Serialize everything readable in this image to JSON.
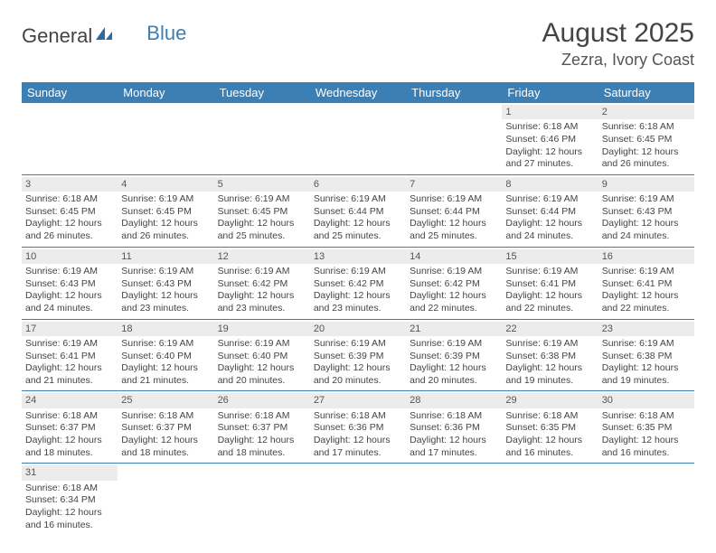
{
  "logo": {
    "text1": "General",
    "text2": "Blue"
  },
  "title": "August 2025",
  "location": "Zezra, Ivory Coast",
  "colors": {
    "header_bg": "#3b7fb5",
    "header_text": "#ffffff",
    "daynum_bg": "#ececec",
    "border": "#3b7fb5",
    "body_text": "#444444"
  },
  "typography": {
    "title_fontsize": 30,
    "location_fontsize": 18,
    "header_fontsize": 13,
    "cell_fontsize": 10.5
  },
  "weekdays": [
    "Sunday",
    "Monday",
    "Tuesday",
    "Wednesday",
    "Thursday",
    "Friday",
    "Saturday"
  ],
  "weeks": [
    [
      {
        "day": "",
        "sunrise": "",
        "sunset": "",
        "daylight": ""
      },
      {
        "day": "",
        "sunrise": "",
        "sunset": "",
        "daylight": ""
      },
      {
        "day": "",
        "sunrise": "",
        "sunset": "",
        "daylight": ""
      },
      {
        "day": "",
        "sunrise": "",
        "sunset": "",
        "daylight": ""
      },
      {
        "day": "",
        "sunrise": "",
        "sunset": "",
        "daylight": ""
      },
      {
        "day": "1",
        "sunrise": "Sunrise: 6:18 AM",
        "sunset": "Sunset: 6:46 PM",
        "daylight": "Daylight: 12 hours and 27 minutes."
      },
      {
        "day": "2",
        "sunrise": "Sunrise: 6:18 AM",
        "sunset": "Sunset: 6:45 PM",
        "daylight": "Daylight: 12 hours and 26 minutes."
      }
    ],
    [
      {
        "day": "3",
        "sunrise": "Sunrise: 6:18 AM",
        "sunset": "Sunset: 6:45 PM",
        "daylight": "Daylight: 12 hours and 26 minutes."
      },
      {
        "day": "4",
        "sunrise": "Sunrise: 6:19 AM",
        "sunset": "Sunset: 6:45 PM",
        "daylight": "Daylight: 12 hours and 26 minutes."
      },
      {
        "day": "5",
        "sunrise": "Sunrise: 6:19 AM",
        "sunset": "Sunset: 6:45 PM",
        "daylight": "Daylight: 12 hours and 25 minutes."
      },
      {
        "day": "6",
        "sunrise": "Sunrise: 6:19 AM",
        "sunset": "Sunset: 6:44 PM",
        "daylight": "Daylight: 12 hours and 25 minutes."
      },
      {
        "day": "7",
        "sunrise": "Sunrise: 6:19 AM",
        "sunset": "Sunset: 6:44 PM",
        "daylight": "Daylight: 12 hours and 25 minutes."
      },
      {
        "day": "8",
        "sunrise": "Sunrise: 6:19 AM",
        "sunset": "Sunset: 6:44 PM",
        "daylight": "Daylight: 12 hours and 24 minutes."
      },
      {
        "day": "9",
        "sunrise": "Sunrise: 6:19 AM",
        "sunset": "Sunset: 6:43 PM",
        "daylight": "Daylight: 12 hours and 24 minutes."
      }
    ],
    [
      {
        "day": "10",
        "sunrise": "Sunrise: 6:19 AM",
        "sunset": "Sunset: 6:43 PM",
        "daylight": "Daylight: 12 hours and 24 minutes."
      },
      {
        "day": "11",
        "sunrise": "Sunrise: 6:19 AM",
        "sunset": "Sunset: 6:43 PM",
        "daylight": "Daylight: 12 hours and 23 minutes."
      },
      {
        "day": "12",
        "sunrise": "Sunrise: 6:19 AM",
        "sunset": "Sunset: 6:42 PM",
        "daylight": "Daylight: 12 hours and 23 minutes."
      },
      {
        "day": "13",
        "sunrise": "Sunrise: 6:19 AM",
        "sunset": "Sunset: 6:42 PM",
        "daylight": "Daylight: 12 hours and 23 minutes."
      },
      {
        "day": "14",
        "sunrise": "Sunrise: 6:19 AM",
        "sunset": "Sunset: 6:42 PM",
        "daylight": "Daylight: 12 hours and 22 minutes."
      },
      {
        "day": "15",
        "sunrise": "Sunrise: 6:19 AM",
        "sunset": "Sunset: 6:41 PM",
        "daylight": "Daylight: 12 hours and 22 minutes."
      },
      {
        "day": "16",
        "sunrise": "Sunrise: 6:19 AM",
        "sunset": "Sunset: 6:41 PM",
        "daylight": "Daylight: 12 hours and 22 minutes."
      }
    ],
    [
      {
        "day": "17",
        "sunrise": "Sunrise: 6:19 AM",
        "sunset": "Sunset: 6:41 PM",
        "daylight": "Daylight: 12 hours and 21 minutes."
      },
      {
        "day": "18",
        "sunrise": "Sunrise: 6:19 AM",
        "sunset": "Sunset: 6:40 PM",
        "daylight": "Daylight: 12 hours and 21 minutes."
      },
      {
        "day": "19",
        "sunrise": "Sunrise: 6:19 AM",
        "sunset": "Sunset: 6:40 PM",
        "daylight": "Daylight: 12 hours and 20 minutes."
      },
      {
        "day": "20",
        "sunrise": "Sunrise: 6:19 AM",
        "sunset": "Sunset: 6:39 PM",
        "daylight": "Daylight: 12 hours and 20 minutes."
      },
      {
        "day": "21",
        "sunrise": "Sunrise: 6:19 AM",
        "sunset": "Sunset: 6:39 PM",
        "daylight": "Daylight: 12 hours and 20 minutes."
      },
      {
        "day": "22",
        "sunrise": "Sunrise: 6:19 AM",
        "sunset": "Sunset: 6:38 PM",
        "daylight": "Daylight: 12 hours and 19 minutes."
      },
      {
        "day": "23",
        "sunrise": "Sunrise: 6:19 AM",
        "sunset": "Sunset: 6:38 PM",
        "daylight": "Daylight: 12 hours and 19 minutes."
      }
    ],
    [
      {
        "day": "24",
        "sunrise": "Sunrise: 6:18 AM",
        "sunset": "Sunset: 6:37 PM",
        "daylight": "Daylight: 12 hours and 18 minutes."
      },
      {
        "day": "25",
        "sunrise": "Sunrise: 6:18 AM",
        "sunset": "Sunset: 6:37 PM",
        "daylight": "Daylight: 12 hours and 18 minutes."
      },
      {
        "day": "26",
        "sunrise": "Sunrise: 6:18 AM",
        "sunset": "Sunset: 6:37 PM",
        "daylight": "Daylight: 12 hours and 18 minutes."
      },
      {
        "day": "27",
        "sunrise": "Sunrise: 6:18 AM",
        "sunset": "Sunset: 6:36 PM",
        "daylight": "Daylight: 12 hours and 17 minutes."
      },
      {
        "day": "28",
        "sunrise": "Sunrise: 6:18 AM",
        "sunset": "Sunset: 6:36 PM",
        "daylight": "Daylight: 12 hours and 17 minutes."
      },
      {
        "day": "29",
        "sunrise": "Sunrise: 6:18 AM",
        "sunset": "Sunset: 6:35 PM",
        "daylight": "Daylight: 12 hours and 16 minutes."
      },
      {
        "day": "30",
        "sunrise": "Sunrise: 6:18 AM",
        "sunset": "Sunset: 6:35 PM",
        "daylight": "Daylight: 12 hours and 16 minutes."
      }
    ],
    [
      {
        "day": "31",
        "sunrise": "Sunrise: 6:18 AM",
        "sunset": "Sunset: 6:34 PM",
        "daylight": "Daylight: 12 hours and 16 minutes."
      },
      {
        "day": "",
        "sunrise": "",
        "sunset": "",
        "daylight": ""
      },
      {
        "day": "",
        "sunrise": "",
        "sunset": "",
        "daylight": ""
      },
      {
        "day": "",
        "sunrise": "",
        "sunset": "",
        "daylight": ""
      },
      {
        "day": "",
        "sunrise": "",
        "sunset": "",
        "daylight": ""
      },
      {
        "day": "",
        "sunrise": "",
        "sunset": "",
        "daylight": ""
      },
      {
        "day": "",
        "sunrise": "",
        "sunset": "",
        "daylight": ""
      }
    ]
  ]
}
